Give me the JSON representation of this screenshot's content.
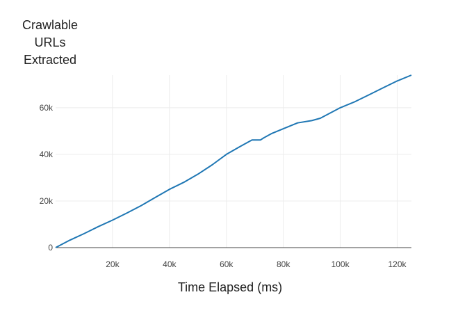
{
  "chart_data": {
    "type": "line",
    "xlabel": "Time Elapsed (ms)",
    "ylabel_lines": [
      "Crawlable",
      "URLs",
      "Extracted"
    ],
    "xlim": [
      0,
      125000
    ],
    "ylim": [
      0,
      74000
    ],
    "x_ticks": [
      20000,
      40000,
      60000,
      80000,
      100000,
      120000
    ],
    "x_tick_labels": [
      "20k",
      "40k",
      "60k",
      "80k",
      "100k",
      "120k"
    ],
    "y_ticks": [
      0,
      20000,
      40000,
      60000
    ],
    "y_tick_labels": [
      "0",
      "20k",
      "40k",
      "60k"
    ],
    "grid": true,
    "series": [
      {
        "color": "#1f77b4",
        "x": [
          0,
          5000,
          10000,
          15000,
          20000,
          25000,
          30000,
          35000,
          40000,
          45000,
          50000,
          55000,
          60000,
          65000,
          69000,
          72000,
          73000,
          76000,
          80000,
          85000,
          90000,
          93000,
          100000,
          105000,
          110000,
          115000,
          120000,
          125000
        ],
        "y": [
          0,
          3200,
          6000,
          9000,
          11800,
          14800,
          18000,
          21500,
          25000,
          28000,
          31500,
          35500,
          40000,
          43500,
          46200,
          46200,
          47000,
          49000,
          51000,
          53500,
          54500,
          55500,
          60000,
          62500,
          65500,
          68500,
          71500,
          74000
        ]
      }
    ]
  }
}
